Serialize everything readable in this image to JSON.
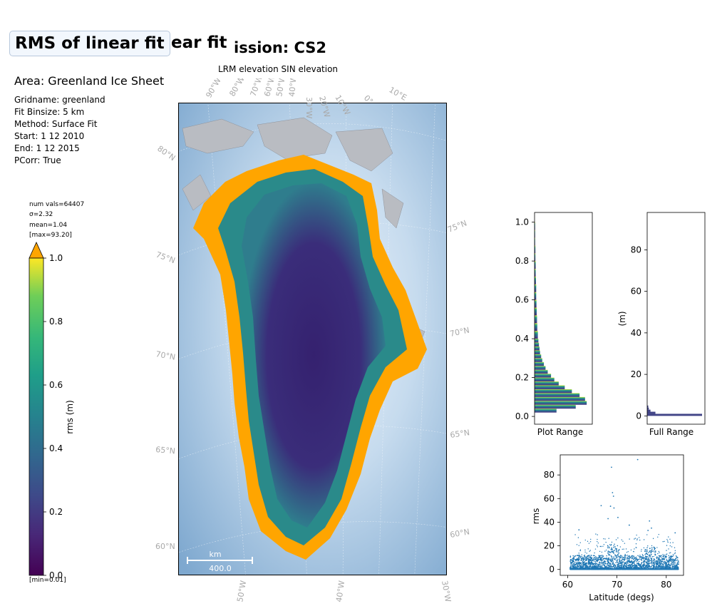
{
  "header": {
    "title": "RMS of linear fit",
    "title_ghost": "ear fit",
    "mission": "ission: CS2",
    "subtitle": "LRM elevation SIN elevation",
    "area": "Area: Greenland Ice Sheet"
  },
  "info": {
    "gridname": "Gridname: greenland",
    "binsize": "Fit Binsize: 5 km",
    "method": "Method: Surface Fit",
    "start": "Start: 1 12 2010",
    "end": "End: 1 12 2015",
    "pcorr": "PCorr: True"
  },
  "stats": {
    "num_vals": "num vals=64407",
    "sigma": "σ=2.32",
    "mean": "mean=1.04",
    "max": "[max=93.20]",
    "min": "[min=0.01]"
  },
  "map": {
    "scalebar_unit": "km",
    "scalebar_value": "400.0",
    "lat_labels_left": [
      "80°N",
      "75°N",
      "70°N",
      "65°N",
      "60°N"
    ],
    "lat_labels_right": [
      "75°N",
      "70°N",
      "65°N",
      "60°N"
    ],
    "lon_labels_top": [
      "90°W",
      "80°W",
      "70°W",
      "60°W",
      "50°W",
      "40°W",
      "30°W",
      "20°W",
      "10°W",
      "0°",
      "10°E"
    ],
    "lon_labels_bottom": [
      "50°W",
      "40°W",
      "30°W"
    ],
    "colors": {
      "ocean": "#7ea8cf",
      "ice_high": "#2d0d64",
      "ice_mid": "#2a7f8e",
      "margin": "#ffa500",
      "rock": "#b9bcc2"
    }
  },
  "chart_data": [
    {
      "type": "bar",
      "name": "colorbar",
      "ylabel": "rms (m)",
      "ylim": [
        0.0,
        1.0
      ],
      "yticks": [
        "0.0",
        "0.2",
        "0.4",
        "0.6",
        "0.8",
        "1.0"
      ],
      "colormap": "viridis",
      "extend": "max",
      "extend_color": "#ffa500"
    },
    {
      "type": "bar",
      "orientation": "horizontal",
      "xlabel": "Plot Range",
      "ylim": [
        -0.04,
        1.05
      ],
      "yticks": [
        "0.0",
        "0.2",
        "0.4",
        "0.6",
        "0.8",
        "1.0"
      ],
      "bins_y": [
        0.04,
        0.06,
        0.08,
        0.1,
        0.12,
        0.14,
        0.16,
        0.18,
        0.2,
        0.22,
        0.24,
        0.26,
        0.28,
        0.3,
        0.32,
        0.34,
        0.36,
        0.38,
        0.4,
        0.44,
        0.48,
        0.52,
        0.56,
        0.6,
        0.64,
        0.68,
        0.72,
        0.76,
        0.8,
        0.84,
        0.88,
        0.92,
        0.96,
        1.0
      ],
      "values": [
        0.4,
        0.75,
        0.95,
        0.92,
        0.82,
        0.68,
        0.55,
        0.44,
        0.36,
        0.3,
        0.24,
        0.2,
        0.17,
        0.14,
        0.12,
        0.1,
        0.09,
        0.08,
        0.07,
        0.06,
        0.05,
        0.045,
        0.04,
        0.035,
        0.03,
        0.03,
        0.025,
        0.02,
        0.02,
        0.015,
        0.015,
        0.01,
        0.01,
        0.01
      ]
    },
    {
      "type": "bar",
      "orientation": "horizontal",
      "xlabel": "Full Range",
      "ylabel": "(m)",
      "ylim": [
        -4,
        98
      ],
      "yticks": [
        "0",
        "20",
        "40",
        "60",
        "80"
      ],
      "bins_y": [
        0,
        1,
        2,
        3,
        4
      ],
      "values": [
        1.0,
        0.15,
        0.06,
        0.03,
        0.02
      ],
      "color": "#414487"
    },
    {
      "type": "scatter",
      "xlabel": "Latitude (degs)",
      "ylabel": "rms",
      "xlim": [
        58.5,
        83.5
      ],
      "ylim": [
        -5,
        97
      ],
      "xticks": [
        "60",
        "70",
        "80"
      ],
      "yticks": [
        "0",
        "20",
        "40",
        "60",
        "80"
      ],
      "color": "#1f77b4",
      "outliers": [
        {
          "x": 68.9,
          "y": 86.5
        },
        {
          "x": 74.2,
          "y": 93.0
        },
        {
          "x": 69.1,
          "y": 65.0
        },
        {
          "x": 69.3,
          "y": 62.0
        },
        {
          "x": 68.7,
          "y": 53.5
        },
        {
          "x": 69.4,
          "y": 52.0
        },
        {
          "x": 66.8,
          "y": 54.0
        },
        {
          "x": 76.6,
          "y": 41.0
        },
        {
          "x": 62.3,
          "y": 33.5
        },
        {
          "x": 72.5,
          "y": 37.5
        },
        {
          "x": 70.2,
          "y": 44.0
        },
        {
          "x": 77.0,
          "y": 35.0
        },
        {
          "x": 81.8,
          "y": 31.0
        },
        {
          "x": 68.2,
          "y": 43.0
        },
        {
          "x": 76.3,
          "y": 33.0
        }
      ]
    }
  ]
}
